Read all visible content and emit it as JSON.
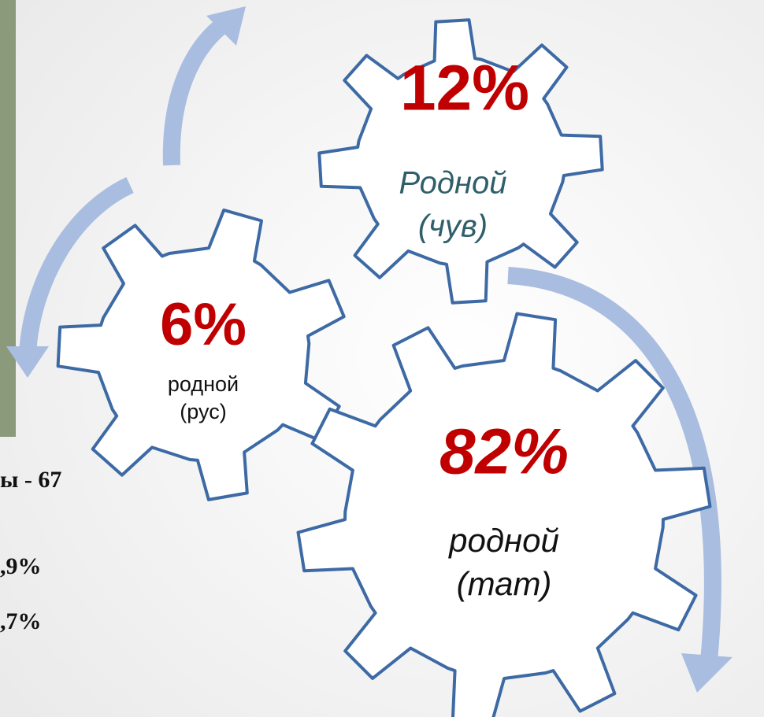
{
  "gears": [
    {
      "percent": "12%",
      "label": [
        "Родной",
        "(чув)"
      ]
    },
    {
      "percent": "6%",
      "label": [
        "родной",
        "(рус)"
      ]
    },
    {
      "percent": "82%",
      "label": [
        "родной",
        "(тат)"
      ]
    }
  ],
  "side_text": [
    "ы - 67",
    ",9%",
    ",7%"
  ]
}
